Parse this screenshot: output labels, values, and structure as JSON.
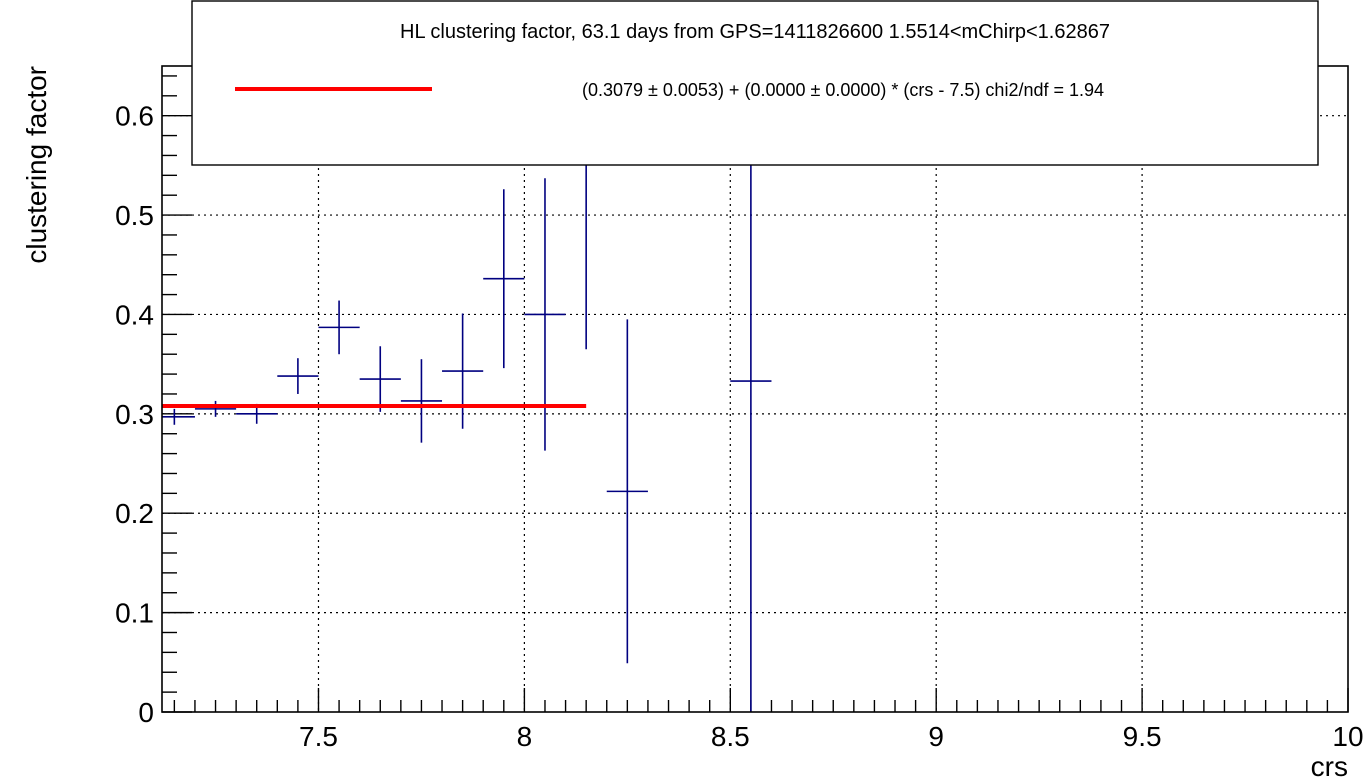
{
  "chart_data": {
    "type": "scatter",
    "title": "",
    "xlabel": "crs",
    "ylabel": "clustering factor",
    "xlim": [
      7.12,
      10.0
    ],
    "ylim": [
      0,
      0.65
    ],
    "grid": true,
    "x_ticks": [
      7.5,
      8,
      8.5,
      9,
      9.5,
      10
    ],
    "x_tick_labels": [
      "7.5",
      "8",
      "8.5",
      "9",
      "9.5",
      "10"
    ],
    "y_ticks": [
      0,
      0.1,
      0.2,
      0.3,
      0.4,
      0.5,
      0.6
    ],
    "y_tick_labels": [
      "0",
      "0.1",
      "0.2",
      "0.3",
      "0.4",
      "0.5",
      "0.6"
    ],
    "legend": {
      "placement": "top",
      "title": "HL clustering factor, 63.1 days from GPS=1411826600 1.5514<mChirp<1.62867",
      "entry": "(0.3079 ± 0.0053) + (0.0000 ± 0.0000) * (crs - 7.5) chi2/ndf = 1.94"
    },
    "series": [
      {
        "style": "error-bars",
        "color": "#000080",
        "points": [
          {
            "x": 7.15,
            "xerr": 0.05,
            "y": 0.297,
            "yerr": 0.008
          },
          {
            "x": 7.25,
            "xerr": 0.05,
            "y": 0.305,
            "yerr": 0.008
          },
          {
            "x": 7.35,
            "xerr": 0.05,
            "y": 0.3,
            "yerr": 0.01
          },
          {
            "x": 7.45,
            "xerr": 0.05,
            "y": 0.338,
            "yerr": 0.018
          },
          {
            "x": 7.55,
            "xerr": 0.05,
            "y": 0.387,
            "yerr": 0.027
          },
          {
            "x": 7.65,
            "xerr": 0.05,
            "y": 0.335,
            "yerr": 0.033
          },
          {
            "x": 7.75,
            "xerr": 0.05,
            "y": 0.313,
            "yerr": 0.042
          },
          {
            "x": 7.85,
            "xerr": 0.05,
            "y": 0.343,
            "yerr": 0.058
          },
          {
            "x": 7.95,
            "xerr": 0.05,
            "y": 0.436,
            "yerr": 0.09
          },
          {
            "x": 8.05,
            "xerr": 0.05,
            "y": 0.4,
            "yerr": 0.137
          },
          {
            "x": 8.15,
            "xerr": 0.05,
            "y": 0.65,
            "yerr": 0.285
          },
          {
            "x": 8.25,
            "xerr": 0.05,
            "y": 0.222,
            "yerr": 0.173
          },
          {
            "x": 8.55,
            "xerr": 0.05,
            "y": 0.333,
            "yerr": 0.333
          }
        ]
      },
      {
        "style": "fit-line",
        "color": "#ff0000",
        "x": [
          7.12,
          8.15
        ],
        "y": [
          0.3079,
          0.3079
        ]
      }
    ]
  }
}
